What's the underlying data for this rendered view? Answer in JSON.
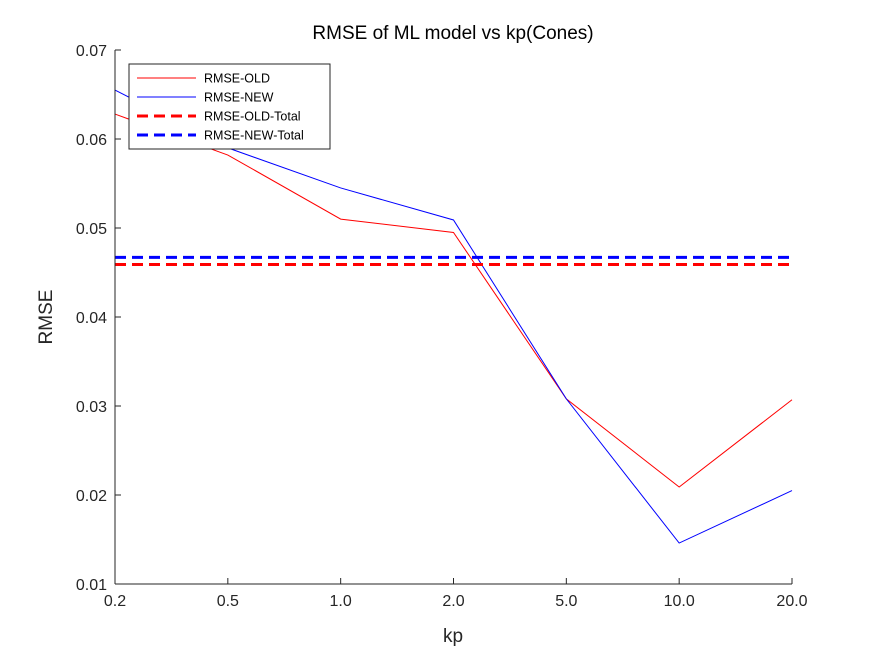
{
  "chart_data": {
    "type": "line",
    "title": "RMSE of ML model vs kp(Cones)",
    "xlabel": "kp",
    "ylabel": "RMSE",
    "categories": [
      "0.2",
      "0.5",
      "1.0",
      "2.0",
      "5.0",
      "10.0",
      "20.0"
    ],
    "yticks": [
      "0.01",
      "0.02",
      "0.03",
      "0.04",
      "0.05",
      "0.06",
      "0.07"
    ],
    "ylim": [
      0.01,
      0.07
    ],
    "grid": false,
    "legend_position": "top-left",
    "series": [
      {
        "name": "RMSE-OLD",
        "color": "#ff0000",
        "style": "solid",
        "values": [
          0.0628,
          0.0582,
          0.051,
          0.0495,
          0.0308,
          0.0209,
          0.0307
        ]
      },
      {
        "name": "RMSE-NEW",
        "color": "#0000ff",
        "style": "solid",
        "values": [
          0.0655,
          0.059,
          0.0545,
          0.0509,
          0.0308,
          0.0146,
          0.0205
        ]
      },
      {
        "name": "RMSE-OLD-Total",
        "color": "#ff0000",
        "style": "dashed",
        "values": [
          0.0459,
          0.0459,
          0.0459,
          0.0459,
          0.0459,
          0.0459,
          0.0459
        ]
      },
      {
        "name": "RMSE-NEW-Total",
        "color": "#0000ff",
        "style": "dashed",
        "values": [
          0.0467,
          0.0467,
          0.0467,
          0.0467,
          0.0467,
          0.0467,
          0.0467
        ]
      }
    ]
  }
}
